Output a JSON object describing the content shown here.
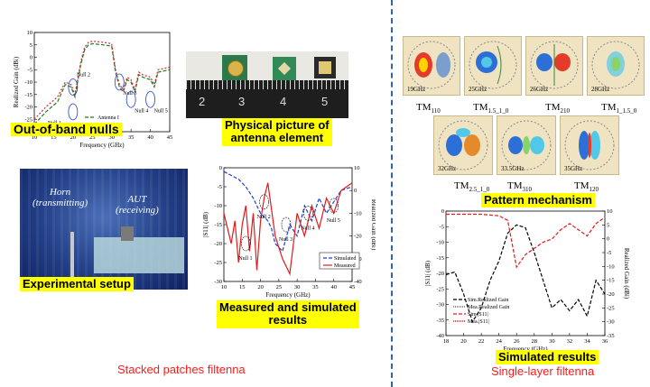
{
  "labels": {
    "out_of_band": "Out-of-band nulls",
    "physical_l1": "Physical picture of",
    "physical_l2": "antenna element",
    "experimental": "Experimental setup",
    "measured_l1": "Measured and simulated",
    "measured_l2": "results",
    "pattern": "Pattern mechanism",
    "simulated": "Simulated results",
    "stacked": "Stacked patches filtenna",
    "single": "Single-layer filtenna"
  },
  "photo": {
    "horn_l1": "Horn",
    "horn_l2": "(transmitting)",
    "aut_l1": "AUT",
    "aut_l2": "(receiving)",
    "ruler": [
      "2",
      "3",
      "4",
      "5"
    ]
  },
  "modes": {
    "freqs": [
      "19GHz",
      "25GHz",
      "26GHz",
      "28GHz",
      "32GHz",
      "33.5GHz",
      "35GHz"
    ],
    "row1": [
      {
        "base": "TM",
        "sub": "110"
      },
      {
        "base": "TM",
        "sub": "1.5_1_0"
      },
      {
        "base": "TM",
        "sub": "210"
      },
      {
        "base": "TM",
        "sub": "1_1.5_0"
      }
    ],
    "row2": [
      {
        "base": "TM",
        "sub": "2.5_1_0"
      },
      {
        "base": "TM",
        "sub": "310"
      },
      {
        "base": "TM",
        "sub": "120"
      }
    ]
  },
  "chart_data": [
    {
      "id": "out_of_band_nulls",
      "type": "line",
      "xlabel": "Frequency (GHz)",
      "ylabel": "Realized Gain (dBi)",
      "xlim": [
        10,
        45
      ],
      "ylim": [
        -30,
        10
      ],
      "xticks": [
        10,
        15,
        20,
        25,
        30,
        35,
        40,
        45
      ],
      "yticks": [
        10,
        5,
        0,
        -5,
        -10,
        -15,
        -20,
        -25,
        -30
      ],
      "annotations": [
        "Null 1",
        "Null 2",
        "Null 3",
        "Null 4",
        "Null 5"
      ],
      "series": [
        {
          "name": "Antenna I",
          "color": "#1f7a1f",
          "dash": "4,2",
          "x": [
            10,
            13,
            16,
            18,
            19.5,
            20.5,
            22,
            23,
            24,
            25,
            28,
            30,
            31,
            32,
            33,
            34,
            35,
            36,
            37,
            38,
            40,
            41,
            42,
            45
          ],
          "y": [
            -27,
            -22,
            -18,
            -11,
            -12,
            -16,
            -3,
            3,
            5,
            5.5,
            5,
            4.5,
            -6,
            -12,
            -14,
            -9,
            -10,
            -14,
            -7,
            -8,
            -9,
            -12,
            -6,
            -5
          ]
        },
        {
          "name": "Antenna II",
          "color": "#d62728",
          "dash": "2,2",
          "x": [
            10,
            13,
            16,
            18,
            19.5,
            20.5,
            22,
            23,
            24,
            25,
            28,
            30,
            31,
            32,
            33,
            34,
            35,
            36,
            37,
            38,
            40,
            41,
            42,
            45
          ],
          "y": [
            -25,
            -20,
            -16,
            -10,
            -11,
            -15,
            -2,
            4,
            6,
            6.5,
            6,
            5.5,
            -5,
            -11,
            -13,
            -8,
            -9,
            -13,
            -6,
            -7,
            -8,
            -11,
            -5,
            -4
          ]
        }
      ]
    },
    {
      "id": "measured_simulated",
      "type": "line",
      "xlabel": "Frequency (GHz)",
      "ylabel": "|S11| (dB)",
      "y2label": "Realized Gain (dBi)",
      "xlim": [
        10,
        45
      ],
      "ylim": [
        -30,
        0
      ],
      "y2lim": [
        -40,
        10
      ],
      "xticks": [
        10,
        15,
        20,
        25,
        30,
        35,
        40,
        45
      ],
      "yticks": [
        0,
        -5,
        -10,
        -15,
        -20,
        -25,
        -30
      ],
      "y2ticks": [
        10,
        0,
        -10,
        -20,
        -30,
        -40
      ],
      "annotations": [
        "Null 1",
        "Null 2",
        "Null 3",
        "Null 4",
        "Null 5"
      ],
      "series": [
        {
          "name": "Simulated",
          "color": "#1a3fd6",
          "dash": "4,2",
          "x": [
            10,
            12,
            14,
            16,
            18,
            20,
            22,
            23,
            24,
            26,
            28,
            30,
            32,
            34,
            36,
            38,
            40,
            42,
            45
          ],
          "y": [
            -1,
            -2,
            -3,
            -5,
            -8,
            -12,
            -14,
            -16,
            -20,
            -22,
            -15,
            -18,
            -10,
            -14,
            -8,
            -12,
            -9,
            -6,
            -5
          ]
        },
        {
          "name": "Measured",
          "color": "#e31a1c",
          "dash": "",
          "x": [
            10,
            12,
            13,
            14,
            15,
            16,
            17,
            18,
            19,
            20,
            21,
            22,
            24,
            26,
            28,
            30,
            32,
            34,
            36,
            38,
            40,
            42,
            45
          ],
          "y": [
            -12,
            -20,
            -14,
            -25,
            -15,
            -10,
            -22,
            -12,
            -27,
            -14,
            -8,
            -4,
            -18,
            -24,
            -28,
            -12,
            -18,
            -10,
            -16,
            -8,
            -12,
            -6,
            -4
          ]
        }
      ]
    },
    {
      "id": "simulated_results",
      "type": "line",
      "xlabel": "Frequency (GHz)",
      "ylabel": "|S11| (dB)",
      "y2label": "Realized Gain (dBi)",
      "xlim": [
        18,
        36
      ],
      "ylim": [
        -40,
        0
      ],
      "y2lim": [
        -35,
        10
      ],
      "xticks": [
        18,
        20,
        22,
        24,
        26,
        28,
        30,
        32,
        34,
        36
      ],
      "yticks": [
        0,
        -5,
        -10,
        -15,
        -20,
        -25,
        -30,
        -35,
        -40
      ],
      "y2ticks": [
        10,
        5,
        0,
        -5,
        -10,
        -15,
        -20,
        -25,
        -30,
        -35
      ],
      "series": [
        {
          "name": "Sim.Realized Gain",
          "color": "#000000",
          "dash": "4,2",
          "axis": "right",
          "x": [
            18,
            19,
            20,
            21,
            22,
            23,
            24,
            25,
            26,
            27,
            28,
            29,
            30,
            31,
            32,
            33,
            34,
            35,
            36
          ],
          "y": [
            -13,
            -12,
            -20,
            -30,
            -25,
            -15,
            -8,
            2,
            5,
            4,
            -5,
            -15,
            -25,
            -22,
            -26,
            -22,
            -28,
            -15,
            -20
          ]
        },
        {
          "name": "Mea.Realized Gain",
          "color": "#444444",
          "dash": "1,1",
          "axis": "right",
          "x": [],
          "y": []
        },
        {
          "name": "Sim.|S11|",
          "color": "#e31a1c",
          "dash": "4,2",
          "axis": "left",
          "x": [
            18,
            20,
            22,
            24,
            25,
            26,
            27,
            28,
            29,
            30,
            31,
            32,
            33,
            34,
            35,
            36
          ],
          "y": [
            -1,
            -1,
            -1,
            -1.5,
            -3,
            -18,
            -14,
            -12,
            -10,
            -9,
            -6,
            -4,
            -6,
            -8,
            -4,
            -2
          ]
        },
        {
          "name": "Mea.|S11|",
          "color": "#b00000",
          "dash": "1,1",
          "axis": "left",
          "x": [],
          "y": []
        }
      ]
    }
  ]
}
